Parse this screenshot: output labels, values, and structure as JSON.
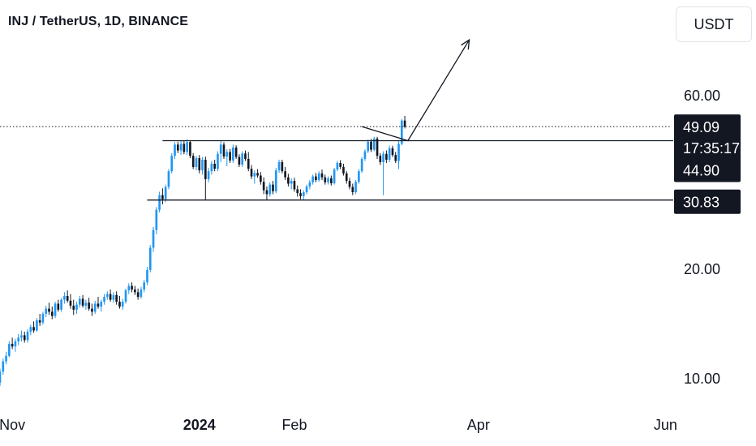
{
  "header": {
    "title": "INJ / TetherUS, 1D, BINANCE"
  },
  "currency_button": {
    "label": "USDT"
  },
  "colors": {
    "up": "#2196f3",
    "down": "#131722",
    "line": "#131722",
    "tag_bg": "#131722",
    "tag_text": "#ffffff"
  },
  "chart_data": {
    "type": "candlestick",
    "title": "INJ / TetherUS, 1D, BINANCE",
    "y_scale": "log",
    "y_ticks": [
      {
        "value": 60,
        "label": "60.00"
      },
      {
        "value": 20,
        "label": "20.00"
      },
      {
        "value": 10,
        "label": "10.00"
      }
    ],
    "x_ticks": [
      {
        "date": "2023-11-01",
        "label": "Nov",
        "bold": false
      },
      {
        "date": "2024-01-01",
        "label": "2024",
        "bold": true
      },
      {
        "date": "2024-02-01",
        "label": "Feb",
        "bold": false
      },
      {
        "date": "2024-04-01",
        "label": "Apr",
        "bold": false
      },
      {
        "date": "2024-06-01",
        "label": "Jun",
        "bold": false
      }
    ],
    "x_range": [
      "2023-10-28",
      "2024-06-03"
    ],
    "last_price": {
      "value": 49.09,
      "label": "49.09",
      "countdown": "17:35:17"
    },
    "horizontal_levels": [
      {
        "value": 44.9,
        "label": "44.90",
        "from": "2023-12-20",
        "to": "2024-03-15"
      },
      {
        "value": 30.83,
        "label": "30.83",
        "from": "2023-12-15",
        "to": "2024-03-30"
      }
    ],
    "projection_arrow": {
      "points": [
        {
          "date": "2024-02-23",
          "value": 49.09
        },
        {
          "date": "2024-03-09",
          "value": 44.9
        },
        {
          "date": "2024-03-29",
          "value": 85
        }
      ]
    },
    "series": [
      {
        "kind": "daily_candles",
        "candles": [
          [
            "2023-10-28",
            9.7,
            10.6,
            9.5,
            10.4
          ],
          [
            "2023-10-29",
            10.4,
            11.3,
            10.2,
            11.1
          ],
          [
            "2023-10-30",
            11.1,
            11.8,
            10.9,
            11.5
          ],
          [
            "2023-10-31",
            11.5,
            12.6,
            11.4,
            12.4
          ],
          [
            "2023-11-01",
            12.4,
            12.9,
            12.0,
            12.2
          ],
          [
            "2023-11-02",
            12.2,
            12.8,
            11.8,
            12.6
          ],
          [
            "2023-11-03",
            12.6,
            13.2,
            12.3,
            12.9
          ],
          [
            "2023-11-04",
            12.9,
            13.5,
            12.6,
            13.1
          ],
          [
            "2023-11-05",
            13.1,
            13.4,
            12.5,
            12.7
          ],
          [
            "2023-11-06",
            12.7,
            13.6,
            12.5,
            13.4
          ],
          [
            "2023-11-07",
            13.4,
            14.0,
            13.1,
            13.8
          ],
          [
            "2023-11-08",
            13.8,
            14.3,
            13.3,
            13.5
          ],
          [
            "2023-11-09",
            13.5,
            14.6,
            13.4,
            14.4
          ],
          [
            "2023-11-10",
            14.4,
            15.0,
            13.9,
            14.2
          ],
          [
            "2023-11-11",
            14.2,
            15.2,
            14.0,
            15.0
          ],
          [
            "2023-11-12",
            15.0,
            15.8,
            14.7,
            15.5
          ],
          [
            "2023-11-13",
            15.5,
            16.1,
            14.9,
            15.2
          ],
          [
            "2023-11-14",
            15.2,
            15.7,
            14.5,
            14.8
          ],
          [
            "2023-11-15",
            14.8,
            16.2,
            14.6,
            16.0
          ],
          [
            "2023-11-16",
            16.0,
            16.4,
            15.2,
            15.4
          ],
          [
            "2023-11-17",
            15.4,
            16.6,
            15.2,
            16.4
          ],
          [
            "2023-11-18",
            16.4,
            17.2,
            16.0,
            16.8
          ],
          [
            "2023-11-19",
            16.8,
            17.4,
            16.1,
            16.3
          ],
          [
            "2023-11-20",
            16.3,
            17.0,
            15.5,
            15.8
          ],
          [
            "2023-11-21",
            15.8,
            16.4,
            14.9,
            15.4
          ],
          [
            "2023-11-22",
            15.4,
            16.2,
            15.0,
            15.9
          ],
          [
            "2023-11-23",
            15.9,
            16.8,
            15.6,
            16.5
          ],
          [
            "2023-11-24",
            16.5,
            16.9,
            15.6,
            15.8
          ],
          [
            "2023-11-25",
            15.8,
            16.4,
            15.4,
            16.1
          ],
          [
            "2023-11-26",
            16.1,
            16.6,
            15.3,
            15.5
          ],
          [
            "2023-11-27",
            15.5,
            16.0,
            14.8,
            15.2
          ],
          [
            "2023-11-28",
            15.2,
            16.3,
            15.0,
            16.0
          ],
          [
            "2023-11-29",
            16.0,
            16.7,
            15.5,
            15.7
          ],
          [
            "2023-11-30",
            15.7,
            16.4,
            15.2,
            16.2
          ],
          [
            "2023-12-01",
            16.2,
            17.0,
            15.9,
            16.7
          ],
          [
            "2023-12-02",
            16.7,
            17.3,
            16.4,
            17.0
          ],
          [
            "2023-12-03",
            17.0,
            17.5,
            16.2,
            16.4
          ],
          [
            "2023-12-04",
            16.4,
            17.2,
            16.1,
            16.9
          ],
          [
            "2023-12-05",
            16.9,
            17.3,
            15.9,
            16.2
          ],
          [
            "2023-12-06",
            16.2,
            16.8,
            15.5,
            15.7
          ],
          [
            "2023-12-07",
            15.7,
            16.5,
            15.4,
            16.2
          ],
          [
            "2023-12-08",
            16.2,
            17.6,
            16.0,
            17.4
          ],
          [
            "2023-12-09",
            17.4,
            18.2,
            17.0,
            17.9
          ],
          [
            "2023-12-10",
            17.9,
            18.3,
            17.2,
            17.5
          ],
          [
            "2023-12-11",
            17.5,
            17.9,
            16.9,
            17.2
          ],
          [
            "2023-12-12",
            17.2,
            17.6,
            16.4,
            16.7
          ],
          [
            "2023-12-13",
            16.7,
            17.8,
            16.5,
            17.5
          ],
          [
            "2023-12-14",
            17.5,
            18.6,
            17.2,
            18.3
          ],
          [
            "2023-12-15",
            18.3,
            20.2,
            18.0,
            19.8
          ],
          [
            "2023-12-16",
            19.8,
            23.2,
            19.5,
            22.8
          ],
          [
            "2023-12-17",
            22.8,
            26.0,
            22.2,
            25.5
          ],
          [
            "2023-12-18",
            25.5,
            29.5,
            24.8,
            29.0
          ],
          [
            "2023-12-19",
            29.0,
            32.5,
            28.5,
            31.8
          ],
          [
            "2023-12-20",
            31.8,
            33.2,
            30.0,
            31.0
          ],
          [
            "2023-12-21",
            31.0,
            34.0,
            30.4,
            33.5
          ],
          [
            "2023-12-22",
            33.5,
            37.5,
            33.0,
            37.0
          ],
          [
            "2023-12-23",
            37.0,
            41.5,
            36.5,
            40.8
          ],
          [
            "2023-12-24",
            40.8,
            44.5,
            40.0,
            43.8
          ],
          [
            "2023-12-25",
            43.8,
            44.6,
            41.5,
            42.2
          ],
          [
            "2023-12-26",
            42.2,
            45.0,
            41.0,
            44.0
          ],
          [
            "2023-12-27",
            44.0,
            44.8,
            41.2,
            41.8
          ],
          [
            "2023-12-28",
            41.8,
            45.3,
            41.0,
            44.5
          ],
          [
            "2023-12-29",
            44.5,
            45.0,
            40.2,
            40.8
          ],
          [
            "2023-12-30",
            40.8,
            41.5,
            37.5,
            38.0
          ],
          [
            "2023-12-31",
            38.0,
            40.8,
            37.2,
            40.2
          ],
          [
            "2024-01-01",
            40.2,
            41.0,
            36.5,
            37.2
          ],
          [
            "2024-01-02",
            37.2,
            40.5,
            36.2,
            39.8
          ],
          [
            "2024-01-03",
            39.8,
            40.6,
            30.8,
            35.2
          ],
          [
            "2024-01-04",
            35.2,
            37.8,
            34.5,
            37.0
          ],
          [
            "2024-01-05",
            37.0,
            39.5,
            36.2,
            38.8
          ],
          [
            "2024-01-06",
            38.8,
            39.8,
            37.0,
            37.6
          ],
          [
            "2024-01-07",
            37.6,
            42.0,
            37.0,
            41.3
          ],
          [
            "2024-01-08",
            41.3,
            44.9,
            39.2,
            43.8
          ],
          [
            "2024-01-09",
            43.8,
            44.5,
            40.0,
            40.6
          ],
          [
            "2024-01-10",
            40.6,
            42.5,
            38.2,
            41.8
          ],
          [
            "2024-01-11",
            41.8,
            42.6,
            39.0,
            39.6
          ],
          [
            "2024-01-12",
            39.6,
            43.8,
            39.0,
            43.0
          ],
          [
            "2024-01-13",
            43.0,
            43.6,
            40.0,
            40.5
          ],
          [
            "2024-01-14",
            40.5,
            41.2,
            38.0,
            38.6
          ],
          [
            "2024-01-15",
            38.6,
            42.0,
            38.0,
            41.4
          ],
          [
            "2024-01-16",
            41.4,
            42.2,
            39.5,
            40.0
          ],
          [
            "2024-01-17",
            40.0,
            41.8,
            37.0,
            37.6
          ],
          [
            "2024-01-18",
            37.6,
            38.5,
            35.2,
            35.8
          ],
          [
            "2024-01-19",
            35.8,
            37.2,
            34.2,
            36.6
          ],
          [
            "2024-01-20",
            36.6,
            37.5,
            35.5,
            36.0
          ],
          [
            "2024-01-21",
            36.0,
            36.8,
            34.0,
            34.6
          ],
          [
            "2024-01-22",
            34.6,
            35.6,
            32.0,
            32.8
          ],
          [
            "2024-01-23",
            32.8,
            33.6,
            30.8,
            32.0
          ],
          [
            "2024-01-24",
            32.0,
            34.5,
            31.5,
            34.0
          ],
          [
            "2024-01-25",
            34.0,
            34.8,
            32.0,
            32.6
          ],
          [
            "2024-01-26",
            32.6,
            37.8,
            32.2,
            37.2
          ],
          [
            "2024-01-27",
            37.2,
            39.8,
            36.6,
            39.2
          ],
          [
            "2024-01-28",
            39.2,
            39.8,
            36.5,
            37.0
          ],
          [
            "2024-01-29",
            37.0,
            38.0,
            35.0,
            35.6
          ],
          [
            "2024-01-30",
            35.6,
            36.4,
            33.6,
            34.2
          ],
          [
            "2024-01-31",
            34.2,
            35.4,
            33.0,
            34.8
          ],
          [
            "2024-02-01",
            34.8,
            35.5,
            32.5,
            33.0
          ],
          [
            "2024-02-02",
            33.0,
            33.8,
            31.5,
            32.2
          ],
          [
            "2024-02-03",
            32.2,
            33.0,
            31.0,
            31.6
          ],
          [
            "2024-02-04",
            31.6,
            32.8,
            30.9,
            32.4
          ],
          [
            "2024-02-05",
            32.4,
            34.0,
            32.0,
            33.6
          ],
          [
            "2024-02-06",
            33.6,
            35.0,
            33.0,
            34.5
          ],
          [
            "2024-02-07",
            34.5,
            36.2,
            34.0,
            35.8
          ],
          [
            "2024-02-08",
            35.8,
            36.6,
            34.5,
            35.0
          ],
          [
            "2024-02-09",
            35.0,
            37.0,
            34.6,
            36.5
          ],
          [
            "2024-02-10",
            36.5,
            37.4,
            35.0,
            35.6
          ],
          [
            "2024-02-11",
            35.6,
            36.2,
            34.0,
            34.5
          ],
          [
            "2024-02-12",
            34.5,
            35.8,
            34.0,
            35.4
          ],
          [
            "2024-02-13",
            35.4,
            36.0,
            33.8,
            34.3
          ],
          [
            "2024-02-14",
            34.3,
            37.8,
            34.0,
            37.4
          ],
          [
            "2024-02-15",
            37.4,
            39.5,
            37.0,
            39.0
          ],
          [
            "2024-02-16",
            39.0,
            39.7,
            37.5,
            38.0
          ],
          [
            "2024-02-17",
            38.0,
            38.8,
            36.0,
            36.5
          ],
          [
            "2024-02-18",
            36.5,
            37.0,
            34.2,
            34.8
          ],
          [
            "2024-02-19",
            34.8,
            35.5,
            33.0,
            33.5
          ],
          [
            "2024-02-20",
            33.5,
            34.2,
            31.8,
            32.4
          ],
          [
            "2024-02-21",
            32.4,
            35.0,
            32.0,
            34.6
          ],
          [
            "2024-02-22",
            34.6,
            37.5,
            34.2,
            37.0
          ],
          [
            "2024-02-23",
            37.0,
            40.5,
            36.6,
            40.0
          ],
          [
            "2024-02-24",
            40.0,
            42.5,
            39.5,
            42.0
          ],
          [
            "2024-02-25",
            42.0,
            45.2,
            41.5,
            44.6
          ],
          [
            "2024-02-26",
            44.6,
            45.4,
            41.8,
            42.4
          ],
          [
            "2024-02-27",
            42.4,
            46.0,
            42.0,
            45.5
          ],
          [
            "2024-02-28",
            45.5,
            46.0,
            40.0,
            40.8
          ],
          [
            "2024-02-29",
            40.8,
            41.5,
            38.5,
            39.2
          ],
          [
            "2024-03-01",
            39.2,
            42.0,
            31.8,
            41.3
          ],
          [
            "2024-03-02",
            41.3,
            42.2,
            39.0,
            39.8
          ],
          [
            "2024-03-03",
            39.8,
            43.5,
            39.2,
            42.8
          ],
          [
            "2024-03-04",
            42.8,
            43.5,
            40.5,
            41.0
          ],
          [
            "2024-03-05",
            41.0,
            41.8,
            39.0,
            39.5
          ],
          [
            "2024-03-06",
            39.5,
            45.0,
            37.5,
            44.0
          ],
          [
            "2024-03-07",
            44.0,
            51.5,
            43.6,
            51.0
          ],
          [
            "2024-03-08",
            51.0,
            52.5,
            48.5,
            49.09
          ]
        ]
      }
    ]
  }
}
